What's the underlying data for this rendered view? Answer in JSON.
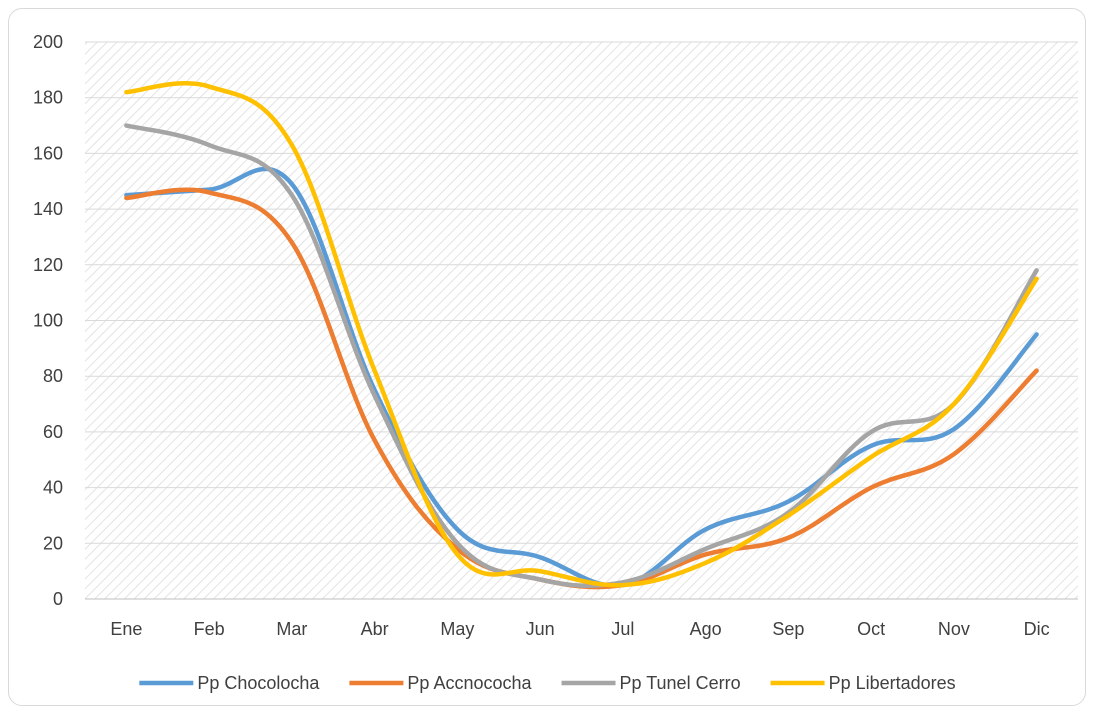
{
  "chart_data": {
    "type": "line",
    "title": "",
    "xlabel": "",
    "ylabel": "",
    "categories": [
      "Ene",
      "Feb",
      "Mar",
      "Abr",
      "May",
      "Jun",
      "Jul",
      "Ago",
      "Sep",
      "Oct",
      "Nov",
      "Dic"
    ],
    "ylim": [
      0,
      200
    ],
    "yticks": [
      "0",
      "20",
      "40",
      "60",
      "80",
      "100",
      "120",
      "140",
      "160",
      "180",
      "200"
    ],
    "grid": true,
    "smooth": true,
    "legend_position": "bottom",
    "series": [
      {
        "name": "Pp Chocolocha",
        "color": "#5b9bd5",
        "values": [
          145,
          147,
          149,
          75,
          25,
          15,
          5,
          25,
          35,
          55,
          61,
          95
        ]
      },
      {
        "name": "Pp Accnococha",
        "color": "#ed7d31",
        "values": [
          144,
          146,
          128,
          57,
          18,
          7,
          5,
          16,
          22,
          40,
          52,
          82
        ]
      },
      {
        "name": "Pp Tunel Cerro",
        "color": "#a5a5a5",
        "values": [
          170,
          163,
          145,
          73,
          20,
          7,
          6,
          18,
          31,
          60,
          70,
          118
        ]
      },
      {
        "name": "Pp Libertadores",
        "color": "#ffc000",
        "values": [
          182,
          184,
          163,
          82,
          16,
          10,
          5,
          13,
          30,
          51,
          70,
          115
        ]
      }
    ]
  }
}
